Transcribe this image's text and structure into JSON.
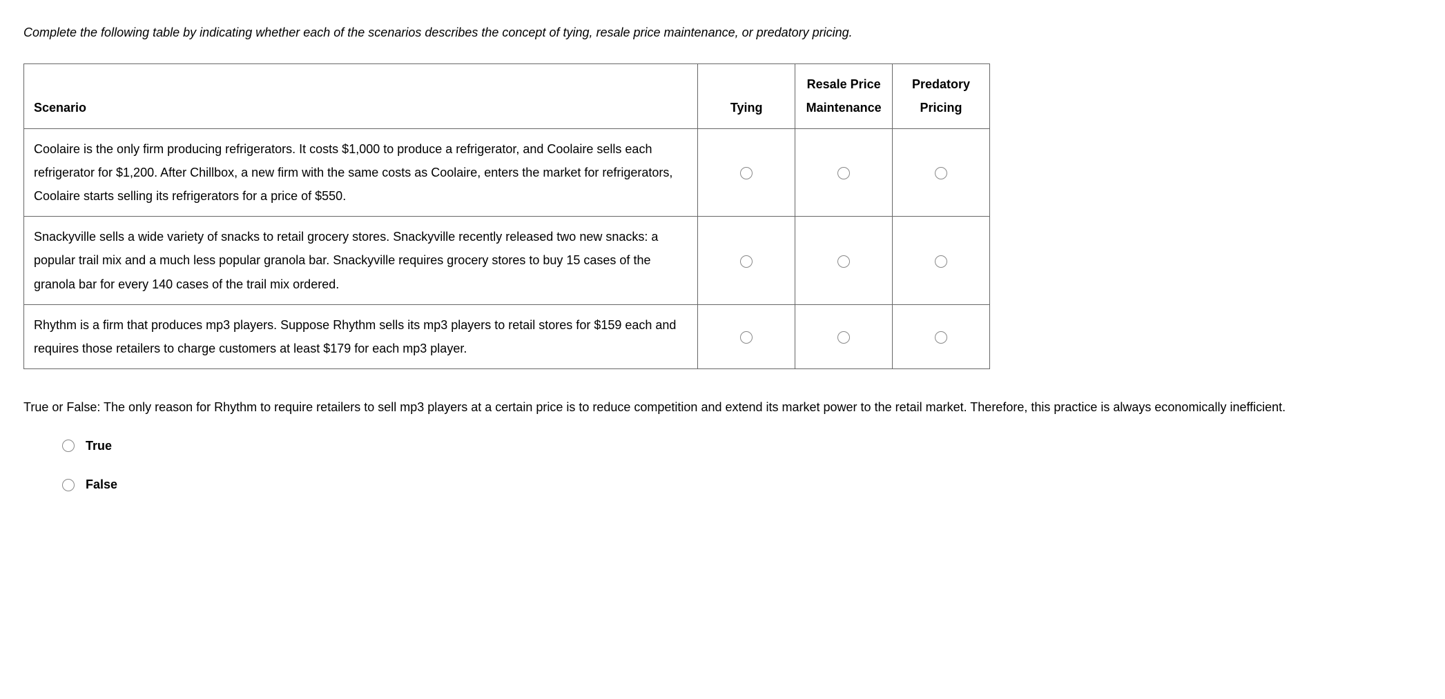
{
  "instruction": "Complete the following table by indicating whether each of the scenarios describes the concept of tying, resale price maintenance, or predatory pricing.",
  "table": {
    "headers": {
      "scenario": "Scenario",
      "tying": "Tying",
      "resale": "Resale Price Maintenance",
      "predatory": "Predatory Pricing"
    },
    "rows": [
      {
        "text": "Coolaire is the only firm producing refrigerators. It costs $1,000 to produce a refrigerator, and Coolaire sells each refrigerator for $1,200. After Chillbox, a new firm with the same costs as Coolaire, enters the market for refrigerators, Coolaire starts selling its refrigerators for a price of $550."
      },
      {
        "text": "Snackyville sells a wide variety of snacks to retail grocery stores. Snackyville recently released two new snacks: a popular trail mix and a much less popular granola bar. Snackyville requires grocery stores to buy 15 cases of the granola bar for every 140 cases of the trail mix ordered."
      },
      {
        "text": "Rhythm is a firm that produces mp3 players. Suppose Rhythm sells its mp3 players to retail stores for $159 each and requires those retailers to charge customers at least $179 for each mp3 player."
      }
    ]
  },
  "tf": {
    "question": "True or False: The only reason for Rhythm to require retailers to sell mp3 players at a certain price is to reduce competition and extend its market power to the retail market. Therefore, this practice is always economically inefficient.",
    "options": {
      "true_label": "True",
      "false_label": "False"
    }
  }
}
